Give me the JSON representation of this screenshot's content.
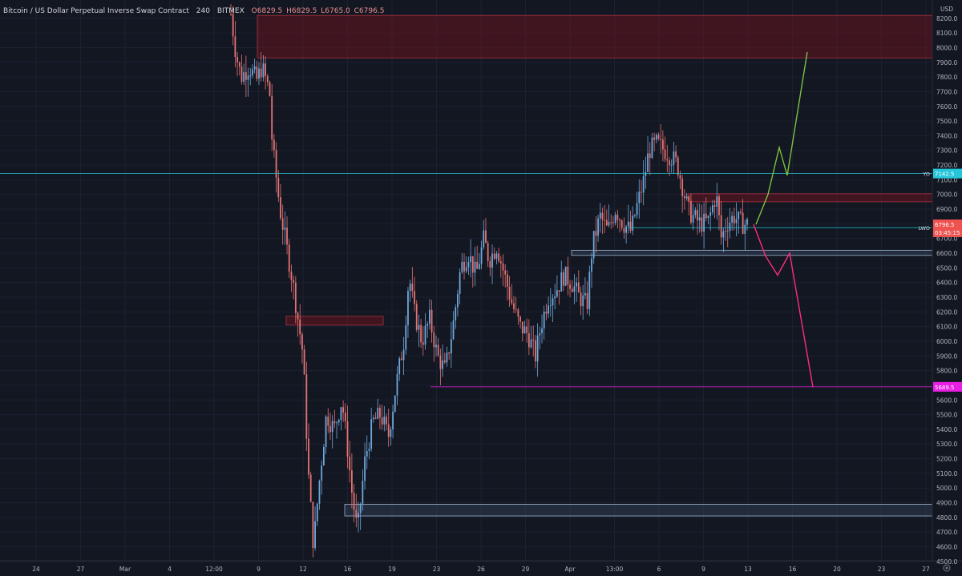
{
  "header": {
    "symbol": "Bitcoin / US Dollar Perpetual Inverse Swap Contract",
    "interval": "240",
    "exchange": "BITMEX",
    "open": "O6829.5",
    "high": "H6829.5",
    "low": "L6765.0",
    "close": "C6796.5"
  },
  "chart_data": {
    "type": "candlestick",
    "ylim": [
      4450,
      8270
    ],
    "currency_label": "USD",
    "y_ticks": [
      4500,
      4600,
      4700,
      4800,
      4900,
      5000,
      5100,
      5200,
      5300,
      5400,
      5500,
      5600,
      5700,
      5800,
      5900,
      6000,
      6100,
      6200,
      6300,
      6400,
      6500,
      6600,
      6700,
      6800,
      6900,
      7000,
      7100,
      7200,
      7300,
      7400,
      7500,
      7600,
      7700,
      7800,
      7900,
      8000,
      8100,
      8200
    ],
    "x_tick_labels": [
      "24",
      "27",
      "Mar",
      "4",
      "12:00",
      "9",
      "12",
      "16",
      "19",
      "23",
      "26",
      "29",
      "Apr",
      "13:00",
      "6",
      "9",
      "13",
      "16",
      "20",
      "23",
      "27"
    ],
    "key_levels": [
      {
        "label": "YO",
        "value": "7142.5",
        "price": 7142.5,
        "color": "#26c6da"
      },
      {
        "label": "LWO",
        "value": "6774.0",
        "price": 6774.0,
        "color": "#26c6da"
      },
      {
        "label": "",
        "value": "5689.5",
        "price": 5689.5,
        "color": "#e91ee3"
      }
    ],
    "last_price": {
      "value": "6796.5",
      "countdown": "03:45:15",
      "color": "#ef5350"
    },
    "zones": [
      {
        "type": "supply",
        "price_top": 8220,
        "price_bottom": 7930,
        "color": "#ef5350"
      },
      {
        "type": "supply",
        "price_top": 6170,
        "price_bottom": 6110,
        "color": "#ef5350"
      },
      {
        "type": "supply",
        "price_top": 7005,
        "price_bottom": 6950,
        "color": "#ef5350"
      },
      {
        "type": "demand",
        "price_top": 6620,
        "price_bottom": 6585,
        "color": "#90caf9"
      },
      {
        "type": "demand",
        "price_top": 4890,
        "price_bottom": 4810,
        "color": "#90caf9"
      }
    ],
    "projections": [
      {
        "name": "",
        "color": "#7bc143",
        "points": [
          [
            6796,
            0
          ],
          [
            7000,
            1
          ],
          [
            7320,
            2
          ],
          [
            7130,
            3
          ],
          [
            7970,
            4
          ]
        ]
      },
      {
        "name": "",
        "color": "#ff2d78",
        "points": [
          [
            6796,
            0
          ],
          [
            6580,
            1
          ],
          [
            6450,
            2
          ],
          [
            6600,
            3
          ],
          [
            5689,
            4
          ]
        ]
      }
    ],
    "price_path": [
      [
        0.0,
        8230
      ],
      [
        0.01,
        7950
      ],
      [
        0.02,
        7800
      ],
      [
        0.035,
        7870
      ],
      [
        0.05,
        7780
      ],
      [
        0.06,
        7870
      ],
      [
        0.075,
        7700
      ],
      [
        0.08,
        7350
      ],
      [
        0.095,
        6900
      ],
      [
        0.12,
        6400
      ],
      [
        0.14,
        5900
      ],
      [
        0.15,
        5100
      ],
      [
        0.16,
        4600
      ],
      [
        0.17,
        5000
      ],
      [
        0.185,
        5500
      ],
      [
        0.2,
        5400
      ],
      [
        0.215,
        5600
      ],
      [
        0.225,
        5300
      ],
      [
        0.235,
        4950
      ],
      [
        0.245,
        4700
      ],
      [
        0.26,
        5200
      ],
      [
        0.275,
        5450
      ],
      [
        0.29,
        5500
      ],
      [
        0.305,
        5350
      ],
      [
        0.32,
        5700
      ],
      [
        0.335,
        6000
      ],
      [
        0.345,
        6450
      ],
      [
        0.355,
        6200
      ],
      [
        0.37,
        6000
      ],
      [
        0.385,
        6150
      ],
      [
        0.4,
        5900
      ],
      [
        0.415,
        5800
      ],
      [
        0.43,
        6100
      ],
      [
        0.445,
        6500
      ],
      [
        0.46,
        6600
      ],
      [
        0.475,
        6450
      ],
      [
        0.49,
        6700
      ],
      [
        0.5,
        6550
      ],
      [
        0.515,
        6650
      ],
      [
        0.53,
        6450
      ],
      [
        0.545,
        6250
      ],
      [
        0.56,
        6100
      ],
      [
        0.575,
        6050
      ],
      [
        0.59,
        5900
      ],
      [
        0.6,
        6100
      ],
      [
        0.615,
        6300
      ],
      [
        0.63,
        6350
      ],
      [
        0.645,
        6450
      ],
      [
        0.66,
        6400
      ],
      [
        0.675,
        6300
      ],
      [
        0.69,
        6250
      ],
      [
        0.7,
        6650
      ],
      [
        0.715,
        6850
      ],
      [
        0.73,
        6750
      ],
      [
        0.745,
        6900
      ],
      [
        0.76,
        6800
      ],
      [
        0.775,
        6750
      ],
      [
        0.785,
        6900
      ],
      [
        0.8,
        7100
      ],
      [
        0.81,
        7300
      ],
      [
        0.825,
        7350
      ],
      [
        0.84,
        7300
      ],
      [
        0.855,
        7250
      ],
      [
        0.865,
        7200
      ],
      [
        0.875,
        7050
      ],
      [
        0.885,
        6900
      ],
      [
        0.895,
        6850
      ],
      [
        0.91,
        6800
      ],
      [
        0.925,
        6820
      ],
      [
        0.94,
        7000
      ],
      [
        0.95,
        6700
      ],
      [
        0.96,
        6800
      ],
      [
        0.975,
        6850
      ],
      [
        0.99,
        6800
      ],
      [
        1.0,
        6796
      ]
    ]
  }
}
